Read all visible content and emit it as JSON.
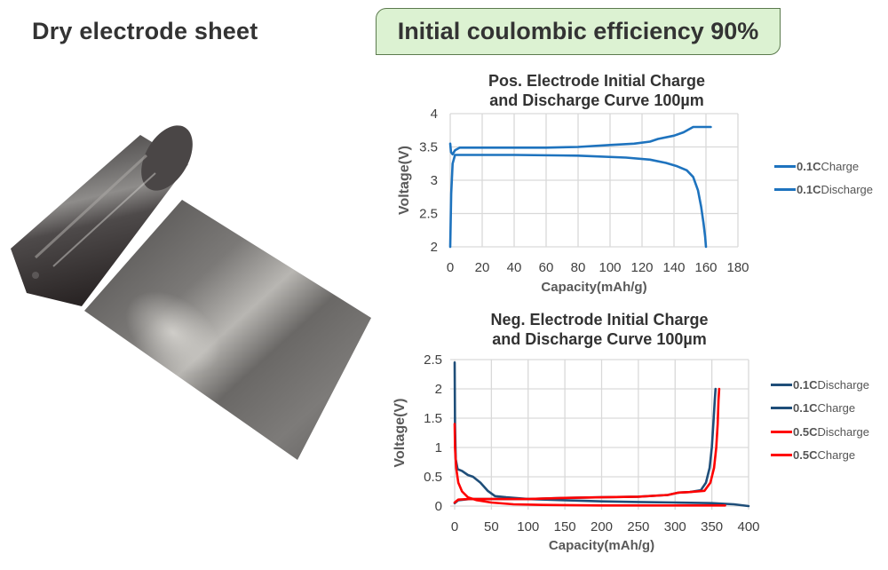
{
  "left_panel": {
    "title": "Dry electrode sheet",
    "image_description": "rolled dark grey dry electrode sheet"
  },
  "badge": {
    "text": "Initial coulombic efficiency 90%",
    "fill": "#dcf2d2",
    "border": "#5c7a4e"
  },
  "colors": {
    "pos_series": "#1e73be",
    "neg_01c": "#1f4e79",
    "neg_05c": "#ff0000",
    "grid": "#d9d9d9",
    "text": "#333333"
  },
  "charts": {
    "pos": {
      "title_line1": "Pos. Electrode Initial Charge",
      "title_line2": "and Discharge Curve 100µm",
      "xlabel": "Capacity(mAh/g)",
      "ylabel": "Voltage(V)",
      "xticks": [
        "0",
        "20",
        "40",
        "60",
        "80",
        "100",
        "120",
        "140",
        "160",
        "180"
      ],
      "yticks": [
        "4",
        "3.5",
        "3",
        "2.5",
        "2"
      ],
      "legend": [
        {
          "rate": "0.1C",
          "label": "Charge"
        },
        {
          "rate": "0.1C",
          "label": "Discharge"
        }
      ]
    },
    "neg": {
      "title_line1": "Neg. Electrode Initial Charge",
      "title_line2": "and Discharge Curve 100µm",
      "xlabel": "Capacity(mAh/g)",
      "ylabel": "Voltage(V)",
      "xticks": [
        "0",
        "50",
        "100",
        "150",
        "200",
        "250",
        "300",
        "350",
        "400"
      ],
      "yticks": [
        "2.5",
        "2",
        "1.5",
        "1",
        "0.5",
        "0"
      ],
      "legend": [
        {
          "rate": "0.1C",
          "label": "Discharge"
        },
        {
          "rate": "0.1C",
          "label": "Charge"
        },
        {
          "rate": "0.5C",
          "label": "Discharge"
        },
        {
          "rate": "0.5C",
          "label": "Charge"
        }
      ]
    }
  },
  "chart_data": [
    {
      "type": "line",
      "title": "Pos. Electrode Initial Charge and Discharge Curve 100µm",
      "xlabel": "Capacity(mAh/g)",
      "ylabel": "Voltage(V)",
      "xlim": [
        0,
        180
      ],
      "ylim": [
        2,
        4
      ],
      "grid": true,
      "legend_position": "right",
      "series": [
        {
          "name": "0.1C Charge",
          "color": "#1e73be",
          "x": [
            0,
            0.5,
            1.5,
            3,
            6,
            20,
            60,
            80,
            100,
            115,
            125,
            130,
            140,
            146,
            152,
            163
          ],
          "y": [
            3.55,
            3.42,
            3.39,
            3.45,
            3.49,
            3.49,
            3.49,
            3.5,
            3.53,
            3.55,
            3.58,
            3.62,
            3.67,
            3.72,
            3.8,
            3.8
          ]
        },
        {
          "name": "0.1C Discharge",
          "color": "#1e73be",
          "x": [
            0,
            0.6,
            1.5,
            3,
            10,
            40,
            80,
            110,
            125,
            135,
            142,
            148,
            152,
            155,
            157,
            158.5,
            159.5,
            160
          ],
          "y": [
            2.0,
            2.8,
            3.25,
            3.38,
            3.38,
            3.38,
            3.37,
            3.34,
            3.31,
            3.26,
            3.21,
            3.15,
            3.05,
            2.85,
            2.6,
            2.35,
            2.15,
            2.0
          ]
        }
      ]
    },
    {
      "type": "line",
      "title": "Neg. Electrode Initial Charge and Discharge Curve 100µm",
      "xlabel": "Capacity(mAh/g)",
      "ylabel": "Voltage(V)",
      "xlim": [
        0,
        400
      ],
      "ylim": [
        0,
        2.5
      ],
      "grid": true,
      "legend_position": "right",
      "series": [
        {
          "name": "0.1C Discharge",
          "color": "#1f4e79",
          "x": [
            0,
            0.5,
            1.5,
            4,
            10,
            18,
            25,
            35,
            45,
            55,
            70,
            100,
            150,
            200,
            250,
            300,
            350,
            380,
            400
          ],
          "y": [
            2.45,
            1.4,
            0.8,
            0.63,
            0.6,
            0.53,
            0.5,
            0.4,
            0.26,
            0.17,
            0.15,
            0.12,
            0.1,
            0.08,
            0.07,
            0.06,
            0.05,
            0.03,
            0.0
          ]
        },
        {
          "name": "0.1C Charge",
          "color": "#1f4e79",
          "x": [
            0,
            5,
            20,
            60,
            100,
            150,
            200,
            250,
            290,
            305,
            320,
            335,
            342,
            347,
            350,
            352,
            354,
            355
          ],
          "y": [
            0.05,
            0.1,
            0.12,
            0.12,
            0.12,
            0.14,
            0.15,
            0.16,
            0.19,
            0.23,
            0.24,
            0.27,
            0.4,
            0.65,
            1.0,
            1.4,
            1.8,
            2.0
          ]
        },
        {
          "name": "0.5C Discharge",
          "color": "#ff0000",
          "x": [
            0,
            0.5,
            2,
            5,
            10,
            18,
            30,
            50,
            80,
            120,
            200,
            300,
            368
          ],
          "y": [
            1.4,
            1.0,
            0.65,
            0.4,
            0.25,
            0.15,
            0.1,
            0.06,
            0.03,
            0.02,
            0.01,
            0.01,
            0.01
          ]
        },
        {
          "name": "0.5C Charge",
          "color": "#ff0000",
          "x": [
            0,
            5,
            20,
            60,
            100,
            150,
            200,
            250,
            290,
            305,
            320,
            340,
            348,
            353,
            356,
            358,
            359,
            360
          ],
          "y": [
            0.06,
            0.11,
            0.12,
            0.12,
            0.12,
            0.14,
            0.15,
            0.16,
            0.19,
            0.23,
            0.24,
            0.26,
            0.4,
            0.65,
            1.0,
            1.4,
            1.8,
            2.0
          ]
        }
      ]
    }
  ]
}
